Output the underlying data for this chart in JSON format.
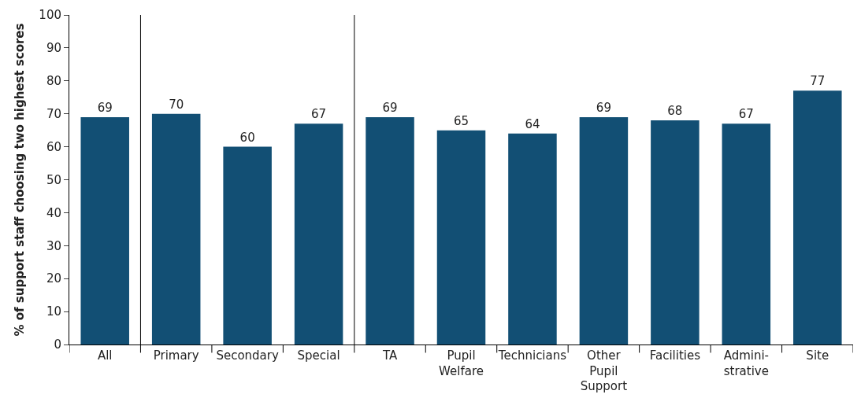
{
  "chart_data": {
    "type": "bar",
    "ylabel": "% of support staff choosing two highest scores",
    "categories": [
      "All",
      "Primary",
      "Secondary",
      "Special",
      "TA",
      "Pupil\nWelfare",
      "Technicians",
      "Other\nPupil\nSupport",
      "Facilities",
      "Admini-\nstrative",
      "Site"
    ],
    "values": [
      69,
      70,
      60,
      67,
      69,
      65,
      64,
      69,
      68,
      67,
      77
    ],
    "color": "#124f74",
    "ylim": [
      0,
      100
    ],
    "yticks": [
      0,
      10,
      20,
      30,
      40,
      50,
      60,
      70,
      80,
      90,
      100
    ],
    "data_labels": true
  }
}
